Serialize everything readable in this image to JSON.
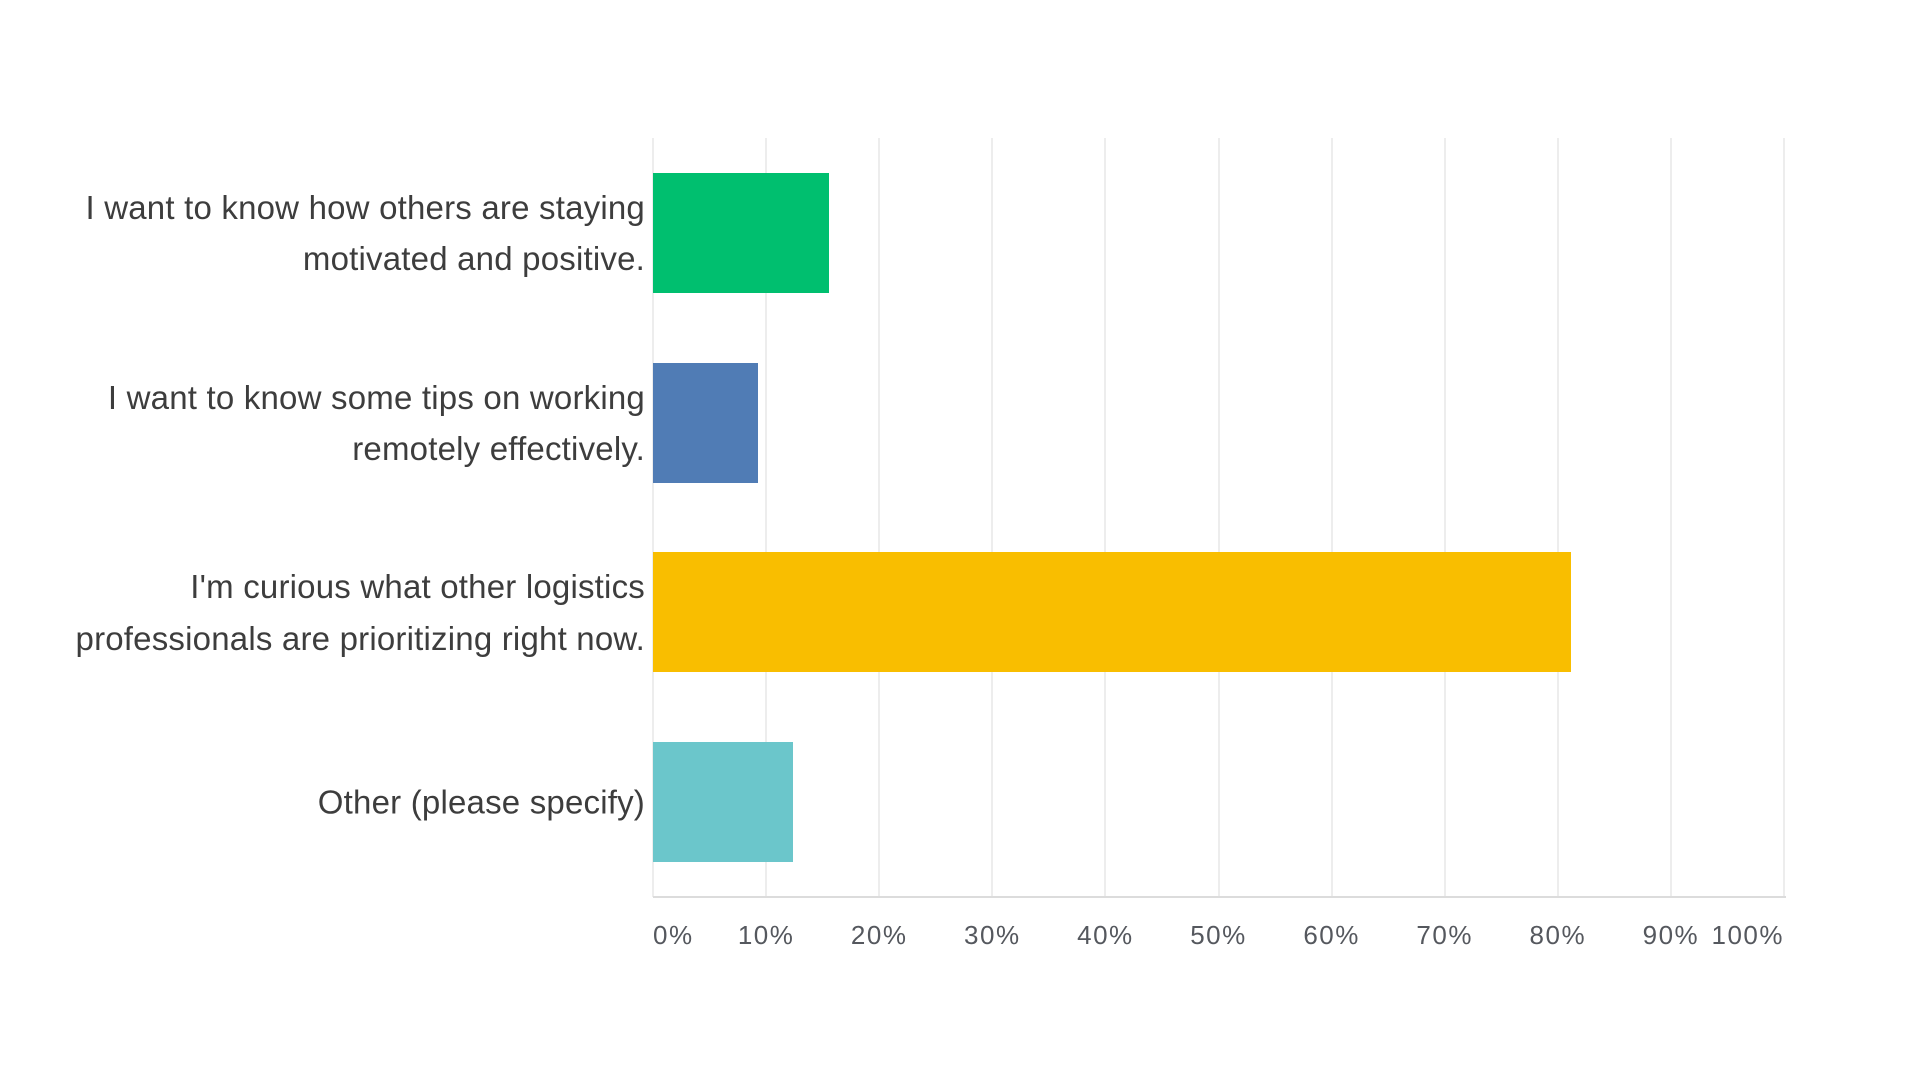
{
  "chart_data": {
    "type": "bar",
    "orientation": "horizontal",
    "categories": [
      "I want to know how others are staying motivated and positive.",
      "I want to know some tips on working remotely effectively.",
      "I'm curious what other logistics professionals are prioritizing right now.",
      "Other (please specify)"
    ],
    "values": [
      15.6,
      9.3,
      81.2,
      12.4
    ],
    "colors": [
      "#00BF6F",
      "#507CB5",
      "#F9BE00",
      "#6BC6CB"
    ],
    "x_ticks": [
      "0%",
      "10%",
      "20%",
      "30%",
      "40%",
      "50%",
      "60%",
      "70%",
      "80%",
      "90%",
      "100%"
    ],
    "xlim": [
      0,
      100
    ],
    "xlabel": "",
    "ylabel": "",
    "grid": "vertical-only",
    "legend": "none",
    "background_color": "#FFFFFF",
    "gridline_color": "#EDEDED",
    "axis_line_color": "#DCDCDC",
    "category_label_color": "#3D3D3D",
    "tick_label_color": "#55585E"
  }
}
